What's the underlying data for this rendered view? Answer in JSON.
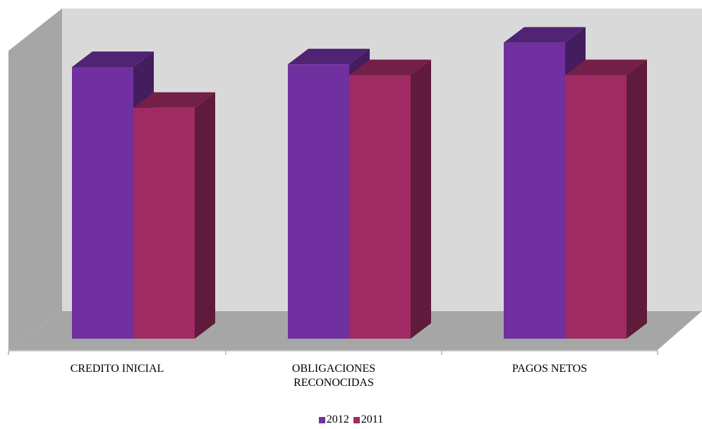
{
  "chart_data": {
    "type": "bar",
    "categories": [
      "CREDITO INICIAL",
      "OBLIGACIONES\nRECONOCIDAS",
      "PAGOS NETOS"
    ],
    "series": [
      {
        "name": "2012",
        "values": [
          100,
          101,
          109
        ],
        "color": "#7030a0"
      },
      {
        "name": "2011",
        "values": [
          85,
          97,
          97
        ],
        "color": "#a02b62"
      }
    ],
    "ylim": [
      0,
      120
    ],
    "legend_position": "bottom",
    "grid": false,
    "style": "3d-clustered-column"
  }
}
